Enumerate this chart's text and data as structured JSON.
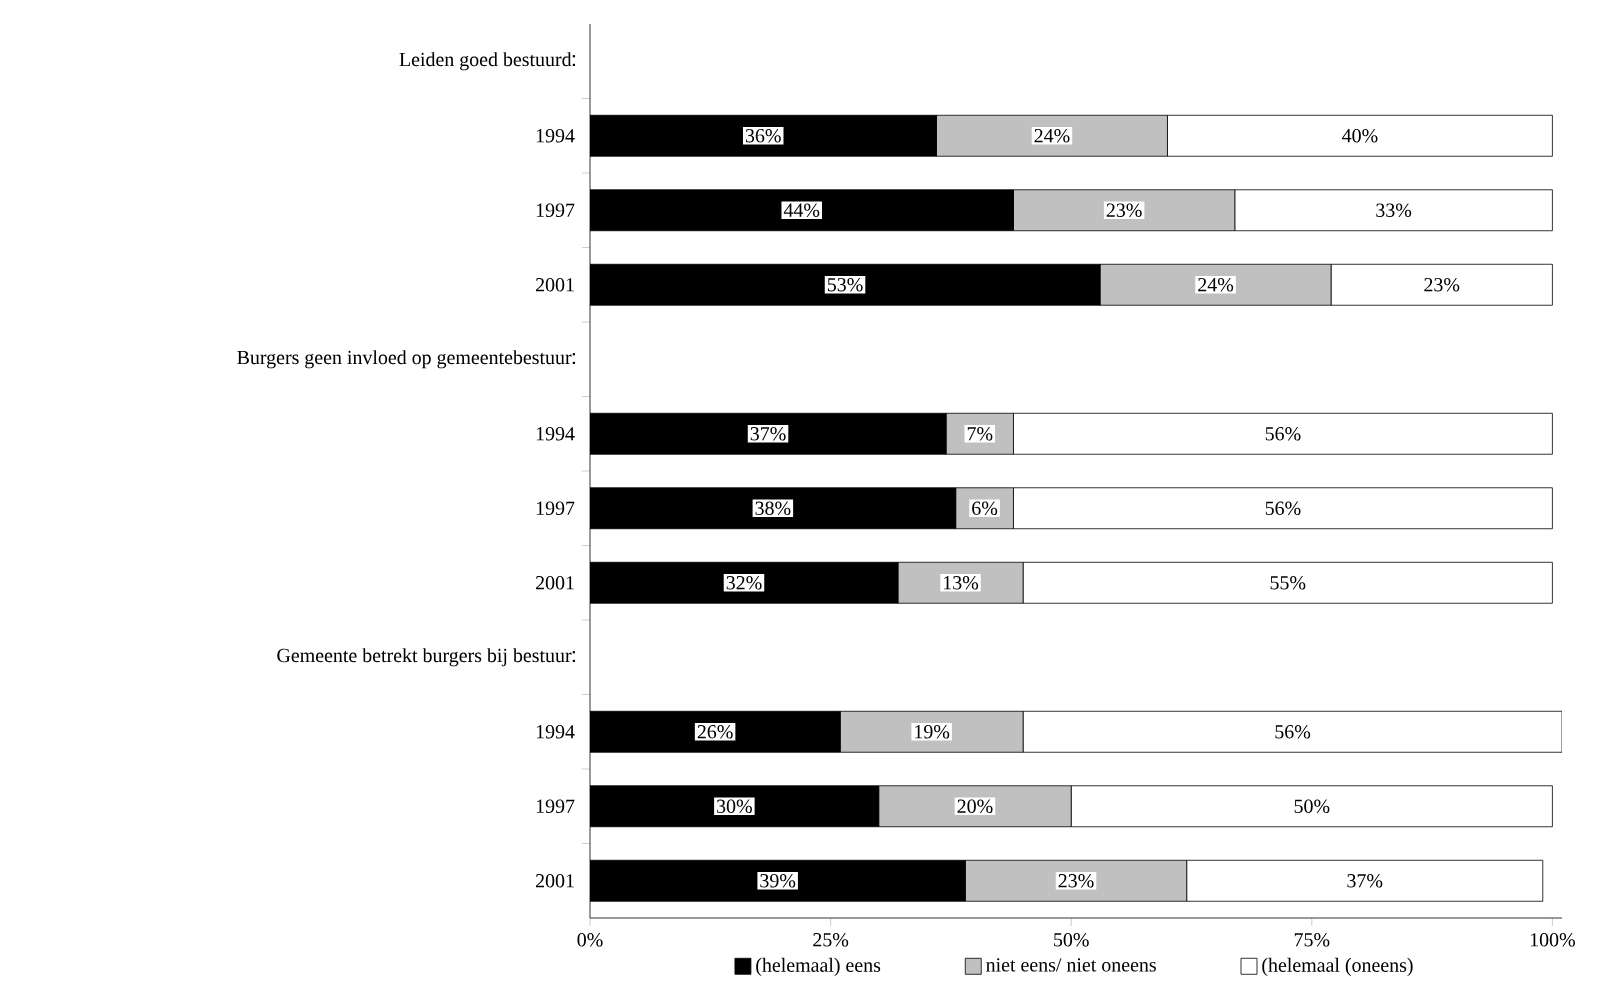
{
  "chart_data": {
    "type": "bar",
    "orientation": "horizontal",
    "stacked": true,
    "legend": "bottom",
    "grid": false,
    "categories": [
      "Leiden goed bestuurd",
      "1994",
      "1997",
      "2001",
      "Burgers geen invloed op gemeentebestuur",
      "1994",
      "1997",
      "2001",
      "Gemeente betrekt burgers bij bestuur",
      "1994",
      "1997",
      "2001"
    ],
    "xlim": [
      0,
      101
    ],
    "xticks": [
      {
        "value": 0,
        "label": "0%"
      },
      {
        "value": 25,
        "label": "25%"
      },
      {
        "value": 50,
        "label": "50%"
      },
      {
        "value": 75,
        "label": "75%"
      },
      {
        "value": 100,
        "label": "100%"
      }
    ],
    "series": [
      {
        "name": "(helemaal) eens",
        "color": "#000000",
        "values": [
          null,
          36,
          44,
          53,
          null,
          37,
          38,
          32,
          null,
          26,
          30,
          39
        ],
        "value_labels": [
          null,
          "36%",
          "44%",
          "53%",
          null,
          "37%",
          "38%",
          "32%",
          null,
          "26%",
          "30%",
          "39%"
        ]
      },
      {
        "name": "niet eens/ niet oneens",
        "color": "#c0c0c0",
        "values": [
          null,
          24,
          23,
          24,
          null,
          7,
          6,
          13,
          null,
          19,
          20,
          23
        ],
        "value_labels": [
          null,
          "24%",
          "23%",
          "24%",
          null,
          "7%",
          "6%",
          "13%",
          null,
          "19%",
          "20%",
          "23%"
        ]
      },
      {
        "name": "(helemaal (oneens)",
        "color": "#ffffff",
        "values": [
          null,
          40,
          33,
          23,
          null,
          56,
          56,
          55,
          null,
          56,
          50,
          37
        ],
        "value_labels": [
          null,
          "40%",
          "33%",
          "23%",
          null,
          "56%",
          "56%",
          "55%",
          null,
          "56%",
          "50%",
          "37%"
        ]
      }
    ]
  }
}
